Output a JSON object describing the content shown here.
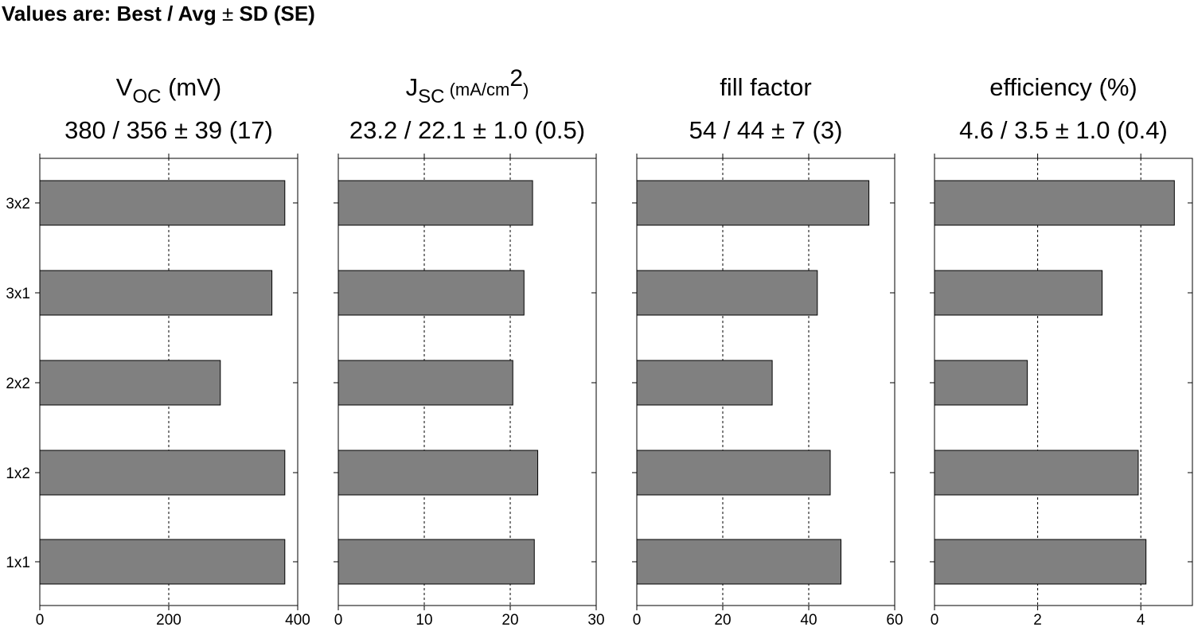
{
  "header": {
    "prefix": "Values are: Best / Avg ",
    "pm": "±",
    "suffix": " SD (SE)"
  },
  "chart_data": {
    "type": "bar",
    "orientation": "horizontal",
    "categories": [
      "3x2",
      "3x1",
      "2x2",
      "1x2",
      "1x1"
    ],
    "bar_color": "#808080",
    "grid": "vertical dashed at interior ticks",
    "panels": [
      {
        "title_main": "V",
        "title_sub": "OC",
        "title_tail": " (mV)",
        "title_sup": "",
        "title_end": "",
        "stats": "380 / 356 ± 39 (17)",
        "xlim": [
          0,
          400
        ],
        "ticks": [
          0,
          200,
          400
        ],
        "values": [
          380,
          360,
          280,
          380,
          380
        ]
      },
      {
        "title_main": "J",
        "title_sub": "SC",
        "title_tail": " (mA/cm",
        "title_sup": "2",
        "title_end": ")",
        "stats": "23.2 / 22.1 ± 1.0 (0.5)",
        "xlim": [
          0,
          30
        ],
        "ticks": [
          0,
          10,
          20,
          30
        ],
        "values": [
          22.6,
          21.6,
          20.3,
          23.2,
          22.8
        ]
      },
      {
        "title_main": "fill factor",
        "title_sub": "",
        "title_tail": "",
        "title_sup": "",
        "title_end": "",
        "stats": "54 / 44 ± 7 (3)",
        "xlim": [
          0,
          60
        ],
        "ticks": [
          0,
          20,
          40,
          60
        ],
        "values": [
          54,
          42,
          31.5,
          45,
          47.5
        ]
      },
      {
        "title_main": "efficiency (%)",
        "title_sub": "",
        "title_tail": "",
        "title_sup": "",
        "title_end": "",
        "stats": "4.6 / 3.5 ± 1.0 (0.4)",
        "xlim": [
          0,
          5
        ],
        "ticks": [
          0,
          2,
          4
        ],
        "values": [
          4.65,
          3.25,
          1.8,
          3.95,
          4.1
        ]
      }
    ]
  }
}
